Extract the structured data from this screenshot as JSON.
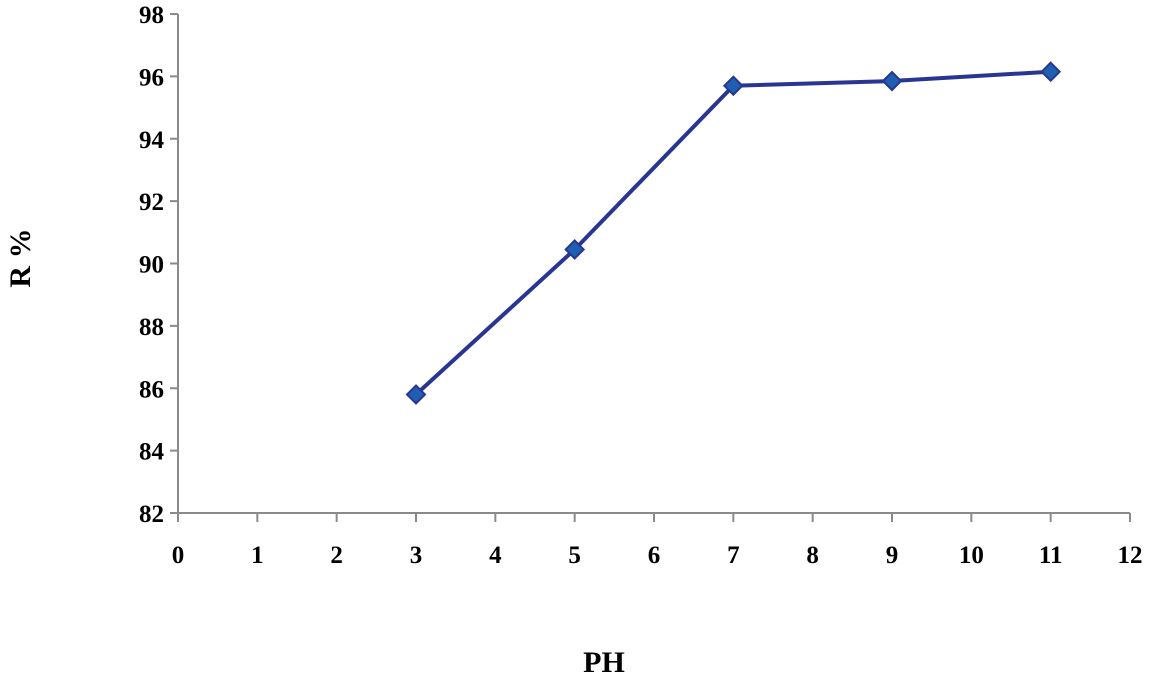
{
  "chart_data": {
    "type": "line",
    "title": "",
    "xlabel": "PH",
    "ylabel": "R %",
    "xlim": [
      0,
      12
    ],
    "ylim": [
      82,
      98
    ],
    "x_ticks": [
      0,
      1,
      2,
      3,
      4,
      5,
      6,
      7,
      8,
      9,
      10,
      11,
      12
    ],
    "y_ticks": [
      82,
      84,
      86,
      88,
      90,
      92,
      94,
      96,
      98
    ],
    "grid": false,
    "legend": "none",
    "series": [
      {
        "x": [
          3,
          5,
          7,
          9,
          11
        ],
        "values": [
          85.8,
          90.45,
          95.7,
          95.85,
          96.15
        ],
        "line_color": "#283593",
        "marker": "diamond",
        "marker_color": "#1f5fb0"
      }
    ]
  }
}
